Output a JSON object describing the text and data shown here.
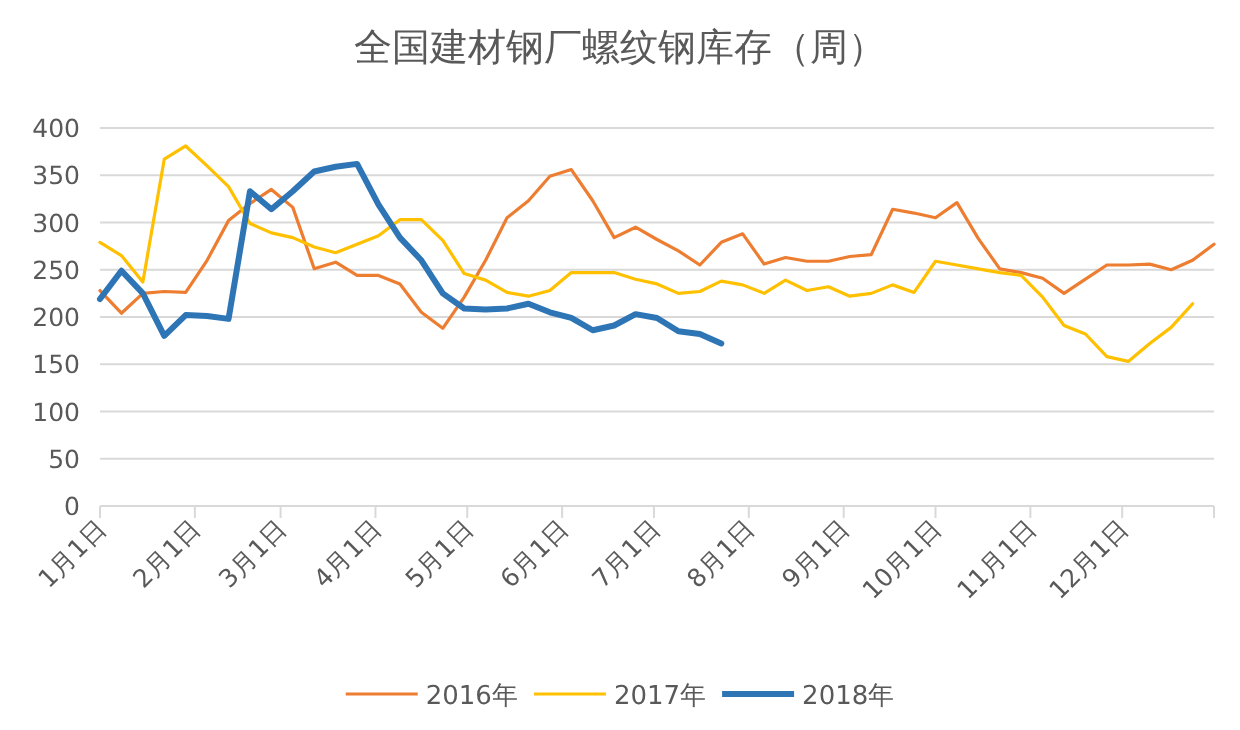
{
  "chart_data": {
    "type": "line",
    "title": "全国建材钢厂螺纹钢库存（周）",
    "x": [
      "--01-01",
      "--01-08",
      "--01-15",
      "--01-22",
      "--01-29",
      "--02-05",
      "--02-12",
      "--02-19",
      "--02-26",
      "--03-05",
      "--03-12",
      "--03-19",
      "--03-26",
      "--04-02",
      "--04-09",
      "--04-16",
      "--04-23",
      "--04-30",
      "--05-07",
      "--05-14",
      "--05-21",
      "--05-28",
      "--06-04",
      "--06-11",
      "--06-18",
      "--06-25",
      "--07-02",
      "--07-09",
      "--07-16",
      "--07-23",
      "--07-30",
      "--08-06",
      "--08-13",
      "--08-20",
      "--08-27",
      "--09-03",
      "--09-10",
      "--09-17",
      "--09-24",
      "--10-01",
      "--10-08",
      "--10-15",
      "--10-22",
      "--10-29",
      "--11-05",
      "--11-12",
      "--11-19",
      "--11-26",
      "--12-03",
      "--12-10",
      "--12-17",
      "--12-24",
      "--12-31"
    ],
    "series": [
      {
        "name": "2016年",
        "color": "#ed7d31",
        "values": [
          228,
          204,
          225,
          227,
          226,
          260,
          302,
          320,
          335,
          316,
          251,
          258,
          244,
          244,
          235,
          205,
          188,
          221,
          260,
          305,
          323,
          349,
          356,
          323,
          284,
          295,
          282,
          270,
          255,
          279,
          288,
          256,
          263,
          259,
          259,
          264,
          266,
          314,
          310,
          305,
          321,
          283,
          251,
          247,
          241,
          225,
          240,
          255,
          255,
          256,
          250,
          260,
          277
        ]
      },
      {
        "name": "2017年",
        "color": "#ffc000",
        "values": [
          279,
          265,
          237,
          367,
          381,
          360,
          338,
          299,
          289,
          284,
          274,
          268,
          277,
          286,
          303,
          303,
          281,
          246,
          239,
          226,
          222,
          228,
          247,
          247,
          247,
          240,
          235,
          225,
          227,
          238,
          234,
          225,
          239,
          228,
          232,
          222,
          225,
          234,
          226,
          259,
          255,
          251,
          247,
          244,
          221,
          191,
          182,
          158,
          153,
          172,
          189,
          214,
          null
        ]
      },
      {
        "name": "2018年",
        "color": "#2e75b6",
        "values": [
          219,
          249,
          225,
          180,
          202,
          201,
          198,
          333,
          314,
          333,
          354,
          359,
          362,
          319,
          284,
          260,
          225,
          209,
          208,
          209,
          214,
          205,
          199,
          186,
          191,
          203,
          199,
          185,
          182,
          172,
          null,
          null,
          null,
          null,
          null,
          null,
          null,
          null,
          null,
          null,
          null,
          null,
          null,
          null,
          null,
          null,
          null,
          null,
          null,
          null,
          null,
          null,
          null
        ]
      }
    ],
    "xlim": [
      "--01-01",
      "--12-31"
    ],
    "xticks": [
      {
        "value": "--01-01",
        "label": "1月1日"
      },
      {
        "value": "--02-01",
        "label": "2月1日"
      },
      {
        "value": "--03-01",
        "label": "3月1日"
      },
      {
        "value": "--04-01",
        "label": "4月1日"
      },
      {
        "value": "--05-01",
        "label": "5月1日"
      },
      {
        "value": "--06-01",
        "label": "6月1日"
      },
      {
        "value": "--07-01",
        "label": "7月1日"
      },
      {
        "value": "--08-01",
        "label": "8月1日"
      },
      {
        "value": "--09-01",
        "label": "9月1日"
      },
      {
        "value": "--10-01",
        "label": "10月1日"
      },
      {
        "value": "--11-01",
        "label": "11月1日"
      },
      {
        "value": "--12-01",
        "label": "12月1日"
      },
      {
        "value": "--12-31",
        "label": null
      }
    ],
    "ylim": [
      0,
      400
    ],
    "yticks": [
      0,
      50,
      100,
      150,
      200,
      250,
      300,
      350,
      400
    ],
    "grid": "y",
    "legend": "bottom",
    "marker": "none",
    "line_style": "solid"
  }
}
